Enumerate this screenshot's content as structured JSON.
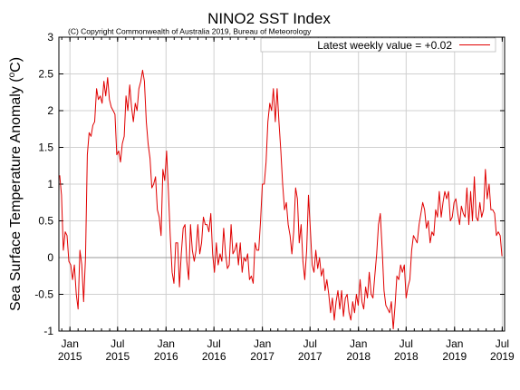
{
  "chart_data": {
    "type": "line",
    "title": "NINO2 SST Index",
    "subtitle": "(C) Copyright Commonwealth of Australia 2019, Bureau of Meteorology",
    "ylabel": "Sea Surface Temperature Anomaly (°C)",
    "ylabel_main": "Sea Surface Temperature Anomaly (",
    "ylabel_sup": "o",
    "ylabel_unit": "C)",
    "xlabel": "",
    "ylim": [
      -1,
      3
    ],
    "xlim": [
      "2014-11-20",
      "2019-07-10"
    ],
    "grid": true,
    "legend_position": "top-right",
    "zero_line": true,
    "y_ticks": [
      "-1",
      "-0.5",
      "0",
      "0.5",
      "1",
      "1.5",
      "2",
      "2.5",
      "3"
    ],
    "y_tick_values": [
      -1,
      -0.5,
      0,
      0.5,
      1,
      1.5,
      2,
      2.5,
      3
    ],
    "x_ticks": [
      {
        "month": "Jan",
        "year": "2015",
        "date": "2015-01-01"
      },
      {
        "month": "Jul",
        "year": "2015",
        "date": "2015-07-01"
      },
      {
        "month": "Jan",
        "year": "2016",
        "date": "2016-01-01"
      },
      {
        "month": "Jul",
        "year": "2016",
        "date": "2016-07-01"
      },
      {
        "month": "Jan",
        "year": "2017",
        "date": "2017-01-01"
      },
      {
        "month": "Jul",
        "year": "2017",
        "date": "2017-07-01"
      },
      {
        "month": "Jan",
        "year": "2018",
        "date": "2018-01-01"
      },
      {
        "month": "Jul",
        "year": "2018",
        "date": "2018-07-01"
      },
      {
        "month": "Jan",
        "year": "2019",
        "date": "2019-01-01"
      },
      {
        "month": "Jul",
        "year": "2019",
        "date": "2019-07-01"
      }
    ],
    "series": [
      {
        "name": "Latest weekly value = +0.02",
        "color": "#e00000",
        "points": [
          [
            "2014-11-23",
            1.12
          ],
          [
            "2014-11-30",
            0.85
          ],
          [
            "2014-12-07",
            0.1
          ],
          [
            "2014-12-14",
            0.35
          ],
          [
            "2014-12-21",
            0.3
          ],
          [
            "2014-12-28",
            -0.05
          ],
          [
            "2015-01-04",
            -0.1
          ],
          [
            "2015-01-11",
            -0.3
          ],
          [
            "2015-01-18",
            -0.1
          ],
          [
            "2015-01-25",
            -0.5
          ],
          [
            "2015-02-01",
            -0.7
          ],
          [
            "2015-02-08",
            0.1
          ],
          [
            "2015-02-15",
            -0.1
          ],
          [
            "2015-02-22",
            -0.6
          ],
          [
            "2015-03-01",
            0.0
          ],
          [
            "2015-03-08",
            1.4
          ],
          [
            "2015-03-15",
            1.7
          ],
          [
            "2015-03-22",
            1.65
          ],
          [
            "2015-03-29",
            1.8
          ],
          [
            "2015-04-05",
            1.85
          ],
          [
            "2015-04-12",
            2.3
          ],
          [
            "2015-04-19",
            2.15
          ],
          [
            "2015-04-26",
            2.2
          ],
          [
            "2015-05-03",
            2.1
          ],
          [
            "2015-05-10",
            2.4
          ],
          [
            "2015-05-17",
            2.2
          ],
          [
            "2015-05-24",
            2.45
          ],
          [
            "2015-05-31",
            2.15
          ],
          [
            "2015-06-07",
            2.05
          ],
          [
            "2015-06-14",
            2.0
          ],
          [
            "2015-06-21",
            1.95
          ],
          [
            "2015-06-28",
            1.4
          ],
          [
            "2015-07-05",
            1.45
          ],
          [
            "2015-07-12",
            1.3
          ],
          [
            "2015-07-19",
            1.55
          ],
          [
            "2015-07-26",
            1.65
          ],
          [
            "2015-08-02",
            2.2
          ],
          [
            "2015-08-09",
            2.0
          ],
          [
            "2015-08-16",
            2.35
          ],
          [
            "2015-08-23",
            2.05
          ],
          [
            "2015-08-30",
            1.85
          ],
          [
            "2015-09-06",
            2.1
          ],
          [
            "2015-09-13",
            2.0
          ],
          [
            "2015-09-20",
            2.3
          ],
          [
            "2015-09-27",
            2.4
          ],
          [
            "2015-10-04",
            2.55
          ],
          [
            "2015-10-11",
            2.4
          ],
          [
            "2015-10-18",
            1.85
          ],
          [
            "2015-10-25",
            1.55
          ],
          [
            "2015-11-01",
            1.35
          ],
          [
            "2015-11-08",
            0.95
          ],
          [
            "2015-11-15",
            1.0
          ],
          [
            "2015-11-22",
            1.1
          ],
          [
            "2015-11-29",
            0.65
          ],
          [
            "2015-12-06",
            0.55
          ],
          [
            "2015-12-13",
            0.3
          ],
          [
            "2015-12-20",
            1.2
          ],
          [
            "2015-12-27",
            1.05
          ],
          [
            "2016-01-03",
            1.45
          ],
          [
            "2016-01-10",
            0.9
          ],
          [
            "2016-01-17",
            0.3
          ],
          [
            "2016-01-24",
            -0.2
          ],
          [
            "2016-01-31",
            -0.35
          ],
          [
            "2016-02-07",
            0.2
          ],
          [
            "2016-02-14",
            0.2
          ],
          [
            "2016-02-21",
            -0.4
          ],
          [
            "2016-02-28",
            0.05
          ],
          [
            "2016-03-06",
            0.4
          ],
          [
            "2016-03-13",
            0.45
          ],
          [
            "2016-03-20",
            -0.05
          ],
          [
            "2016-03-27",
            -0.3
          ],
          [
            "2016-04-03",
            0.45
          ],
          [
            "2016-04-10",
            0.1
          ],
          [
            "2016-04-17",
            -0.05
          ],
          [
            "2016-04-24",
            0.1
          ],
          [
            "2016-05-01",
            0.45
          ],
          [
            "2016-05-08",
            0.05
          ],
          [
            "2016-05-15",
            0.2
          ],
          [
            "2016-05-22",
            0.55
          ],
          [
            "2016-05-29",
            0.45
          ],
          [
            "2016-06-05",
            0.45
          ],
          [
            "2016-06-12",
            0.35
          ],
          [
            "2016-06-19",
            0.6
          ],
          [
            "2016-06-26",
            0.05
          ],
          [
            "2016-07-03",
            -0.2
          ],
          [
            "2016-07-10",
            0.2
          ],
          [
            "2016-07-17",
            -0.1
          ],
          [
            "2016-07-24",
            0.05
          ],
          [
            "2016-07-31",
            -0.05
          ],
          [
            "2016-08-07",
            0.4
          ],
          [
            "2016-08-14",
            0.05
          ],
          [
            "2016-08-21",
            -0.15
          ],
          [
            "2016-08-28",
            -0.1
          ],
          [
            "2016-09-04",
            0.45
          ],
          [
            "2016-09-11",
            0.05
          ],
          [
            "2016-09-18",
            0.1
          ],
          [
            "2016-09-25",
            0.2
          ],
          [
            "2016-10-02",
            -0.1
          ],
          [
            "2016-10-09",
            0.2
          ],
          [
            "2016-10-16",
            -0.2
          ],
          [
            "2016-10-23",
            0.0
          ],
          [
            "2016-10-30",
            -0.05
          ],
          [
            "2016-11-06",
            0.05
          ],
          [
            "2016-11-13",
            -0.3
          ],
          [
            "2016-11-20",
            -0.25
          ],
          [
            "2016-11-27",
            -0.35
          ],
          [
            "2016-12-04",
            0.2
          ],
          [
            "2016-12-11",
            0.1
          ],
          [
            "2016-12-18",
            0.1
          ],
          [
            "2016-12-25",
            0.5
          ],
          [
            "2017-01-01",
            1.0
          ],
          [
            "2017-01-08",
            1.0
          ],
          [
            "2017-01-15",
            1.3
          ],
          [
            "2017-01-22",
            1.85
          ],
          [
            "2017-01-29",
            2.1
          ],
          [
            "2017-02-05",
            2.0
          ],
          [
            "2017-02-12",
            2.3
          ],
          [
            "2017-02-19",
            1.85
          ],
          [
            "2017-02-26",
            2.3
          ],
          [
            "2017-03-05",
            1.85
          ],
          [
            "2017-03-12",
            1.45
          ],
          [
            "2017-03-19",
            1.0
          ],
          [
            "2017-03-26",
            0.65
          ],
          [
            "2017-04-02",
            0.75
          ],
          [
            "2017-04-09",
            0.45
          ],
          [
            "2017-04-16",
            0.3
          ],
          [
            "2017-04-23",
            0.05
          ],
          [
            "2017-04-30",
            0.35
          ],
          [
            "2017-05-07",
            0.95
          ],
          [
            "2017-05-14",
            0.8
          ],
          [
            "2017-05-21",
            0.2
          ],
          [
            "2017-05-28",
            0.45
          ],
          [
            "2017-06-04",
            -0.05
          ],
          [
            "2017-06-11",
            -0.3
          ],
          [
            "2017-06-18",
            0.1
          ],
          [
            "2017-06-25",
            0.85
          ],
          [
            "2017-07-02",
            0.4
          ],
          [
            "2017-07-09",
            -0.1
          ],
          [
            "2017-07-16",
            -0.2
          ],
          [
            "2017-07-23",
            0.1
          ],
          [
            "2017-07-30",
            -0.15
          ],
          [
            "2017-08-06",
            0.0
          ],
          [
            "2017-08-13",
            -0.25
          ],
          [
            "2017-08-20",
            -0.15
          ],
          [
            "2017-08-27",
            -0.45
          ],
          [
            "2017-09-03",
            -0.3
          ],
          [
            "2017-09-10",
            -0.5
          ],
          [
            "2017-09-17",
            -0.75
          ],
          [
            "2017-09-24",
            -0.55
          ],
          [
            "2017-10-01",
            -0.85
          ],
          [
            "2017-10-08",
            -0.6
          ],
          [
            "2017-10-15",
            -0.45
          ],
          [
            "2017-10-22",
            -0.7
          ],
          [
            "2017-10-29",
            -0.45
          ],
          [
            "2017-11-05",
            -0.8
          ],
          [
            "2017-11-12",
            -0.55
          ],
          [
            "2017-11-19",
            -0.5
          ],
          [
            "2017-11-26",
            -0.75
          ],
          [
            "2017-12-03",
            -0.85
          ],
          [
            "2017-12-10",
            -0.6
          ],
          [
            "2017-12-17",
            -0.75
          ],
          [
            "2017-12-24",
            -0.5
          ],
          [
            "2017-12-31",
            -0.65
          ],
          [
            "2018-01-07",
            -0.3
          ],
          [
            "2018-01-14",
            -0.6
          ],
          [
            "2018-01-21",
            -0.7
          ],
          [
            "2018-01-28",
            -0.4
          ],
          [
            "2018-02-04",
            -0.55
          ],
          [
            "2018-02-11",
            -0.2
          ],
          [
            "2018-02-18",
            -0.5
          ],
          [
            "2018-02-25",
            -0.55
          ],
          [
            "2018-03-04",
            -0.25
          ],
          [
            "2018-03-11",
            0.05
          ],
          [
            "2018-03-18",
            0.45
          ],
          [
            "2018-03-25",
            0.6
          ],
          [
            "2018-04-01",
            0.1
          ],
          [
            "2018-04-08",
            -0.45
          ],
          [
            "2018-04-15",
            -0.65
          ],
          [
            "2018-04-22",
            -0.7
          ],
          [
            "2018-04-29",
            -0.75
          ],
          [
            "2018-05-06",
            -0.6
          ],
          [
            "2018-05-13",
            -0.97
          ],
          [
            "2018-05-20",
            -0.65
          ],
          [
            "2018-05-27",
            -0.25
          ],
          [
            "2018-06-03",
            -0.3
          ],
          [
            "2018-06-10",
            -0.1
          ],
          [
            "2018-06-17",
            -0.2
          ],
          [
            "2018-06-24",
            -0.1
          ],
          [
            "2018-07-01",
            -0.55
          ],
          [
            "2018-07-08",
            -0.4
          ],
          [
            "2018-07-15",
            -0.3
          ],
          [
            "2018-07-22",
            0.1
          ],
          [
            "2018-07-29",
            0.3
          ],
          [
            "2018-08-05",
            0.25
          ],
          [
            "2018-08-12",
            0.2
          ],
          [
            "2018-08-19",
            0.45
          ],
          [
            "2018-08-26",
            0.6
          ],
          [
            "2018-09-02",
            0.75
          ],
          [
            "2018-09-09",
            0.65
          ],
          [
            "2018-09-16",
            0.4
          ],
          [
            "2018-09-23",
            0.5
          ],
          [
            "2018-09-30",
            0.2
          ],
          [
            "2018-10-07",
            0.35
          ],
          [
            "2018-10-14",
            0.3
          ],
          [
            "2018-10-21",
            0.65
          ],
          [
            "2018-10-28",
            0.55
          ],
          [
            "2018-11-04",
            0.9
          ],
          [
            "2018-11-11",
            0.55
          ],
          [
            "2018-11-18",
            0.75
          ],
          [
            "2018-11-25",
            0.9
          ],
          [
            "2018-12-02",
            0.8
          ],
          [
            "2018-12-09",
            0.9
          ],
          [
            "2018-12-16",
            0.5
          ],
          [
            "2018-12-23",
            0.55
          ],
          [
            "2018-12-30",
            0.75
          ],
          [
            "2019-01-06",
            0.8
          ],
          [
            "2019-01-13",
            0.6
          ],
          [
            "2019-01-20",
            0.45
          ],
          [
            "2019-01-27",
            0.7
          ],
          [
            "2019-02-03",
            0.6
          ],
          [
            "2019-02-10",
            0.55
          ],
          [
            "2019-02-17",
            0.95
          ],
          [
            "2019-02-24",
            0.45
          ],
          [
            "2019-03-03",
            0.9
          ],
          [
            "2019-03-10",
            0.5
          ],
          [
            "2019-03-17",
            1.1
          ],
          [
            "2019-03-24",
            0.55
          ],
          [
            "2019-03-31",
            0.5
          ],
          [
            "2019-04-07",
            0.75
          ],
          [
            "2019-04-14",
            0.55
          ],
          [
            "2019-04-21",
            0.65
          ],
          [
            "2019-04-28",
            1.2
          ],
          [
            "2019-05-05",
            0.8
          ],
          [
            "2019-05-12",
            1.0
          ],
          [
            "2019-05-19",
            0.65
          ],
          [
            "2019-05-26",
            0.65
          ],
          [
            "2019-06-02",
            0.6
          ],
          [
            "2019-06-09",
            0.3
          ],
          [
            "2019-06-16",
            0.35
          ],
          [
            "2019-06-23",
            0.3
          ],
          [
            "2019-06-30",
            0.02
          ]
        ]
      }
    ]
  }
}
